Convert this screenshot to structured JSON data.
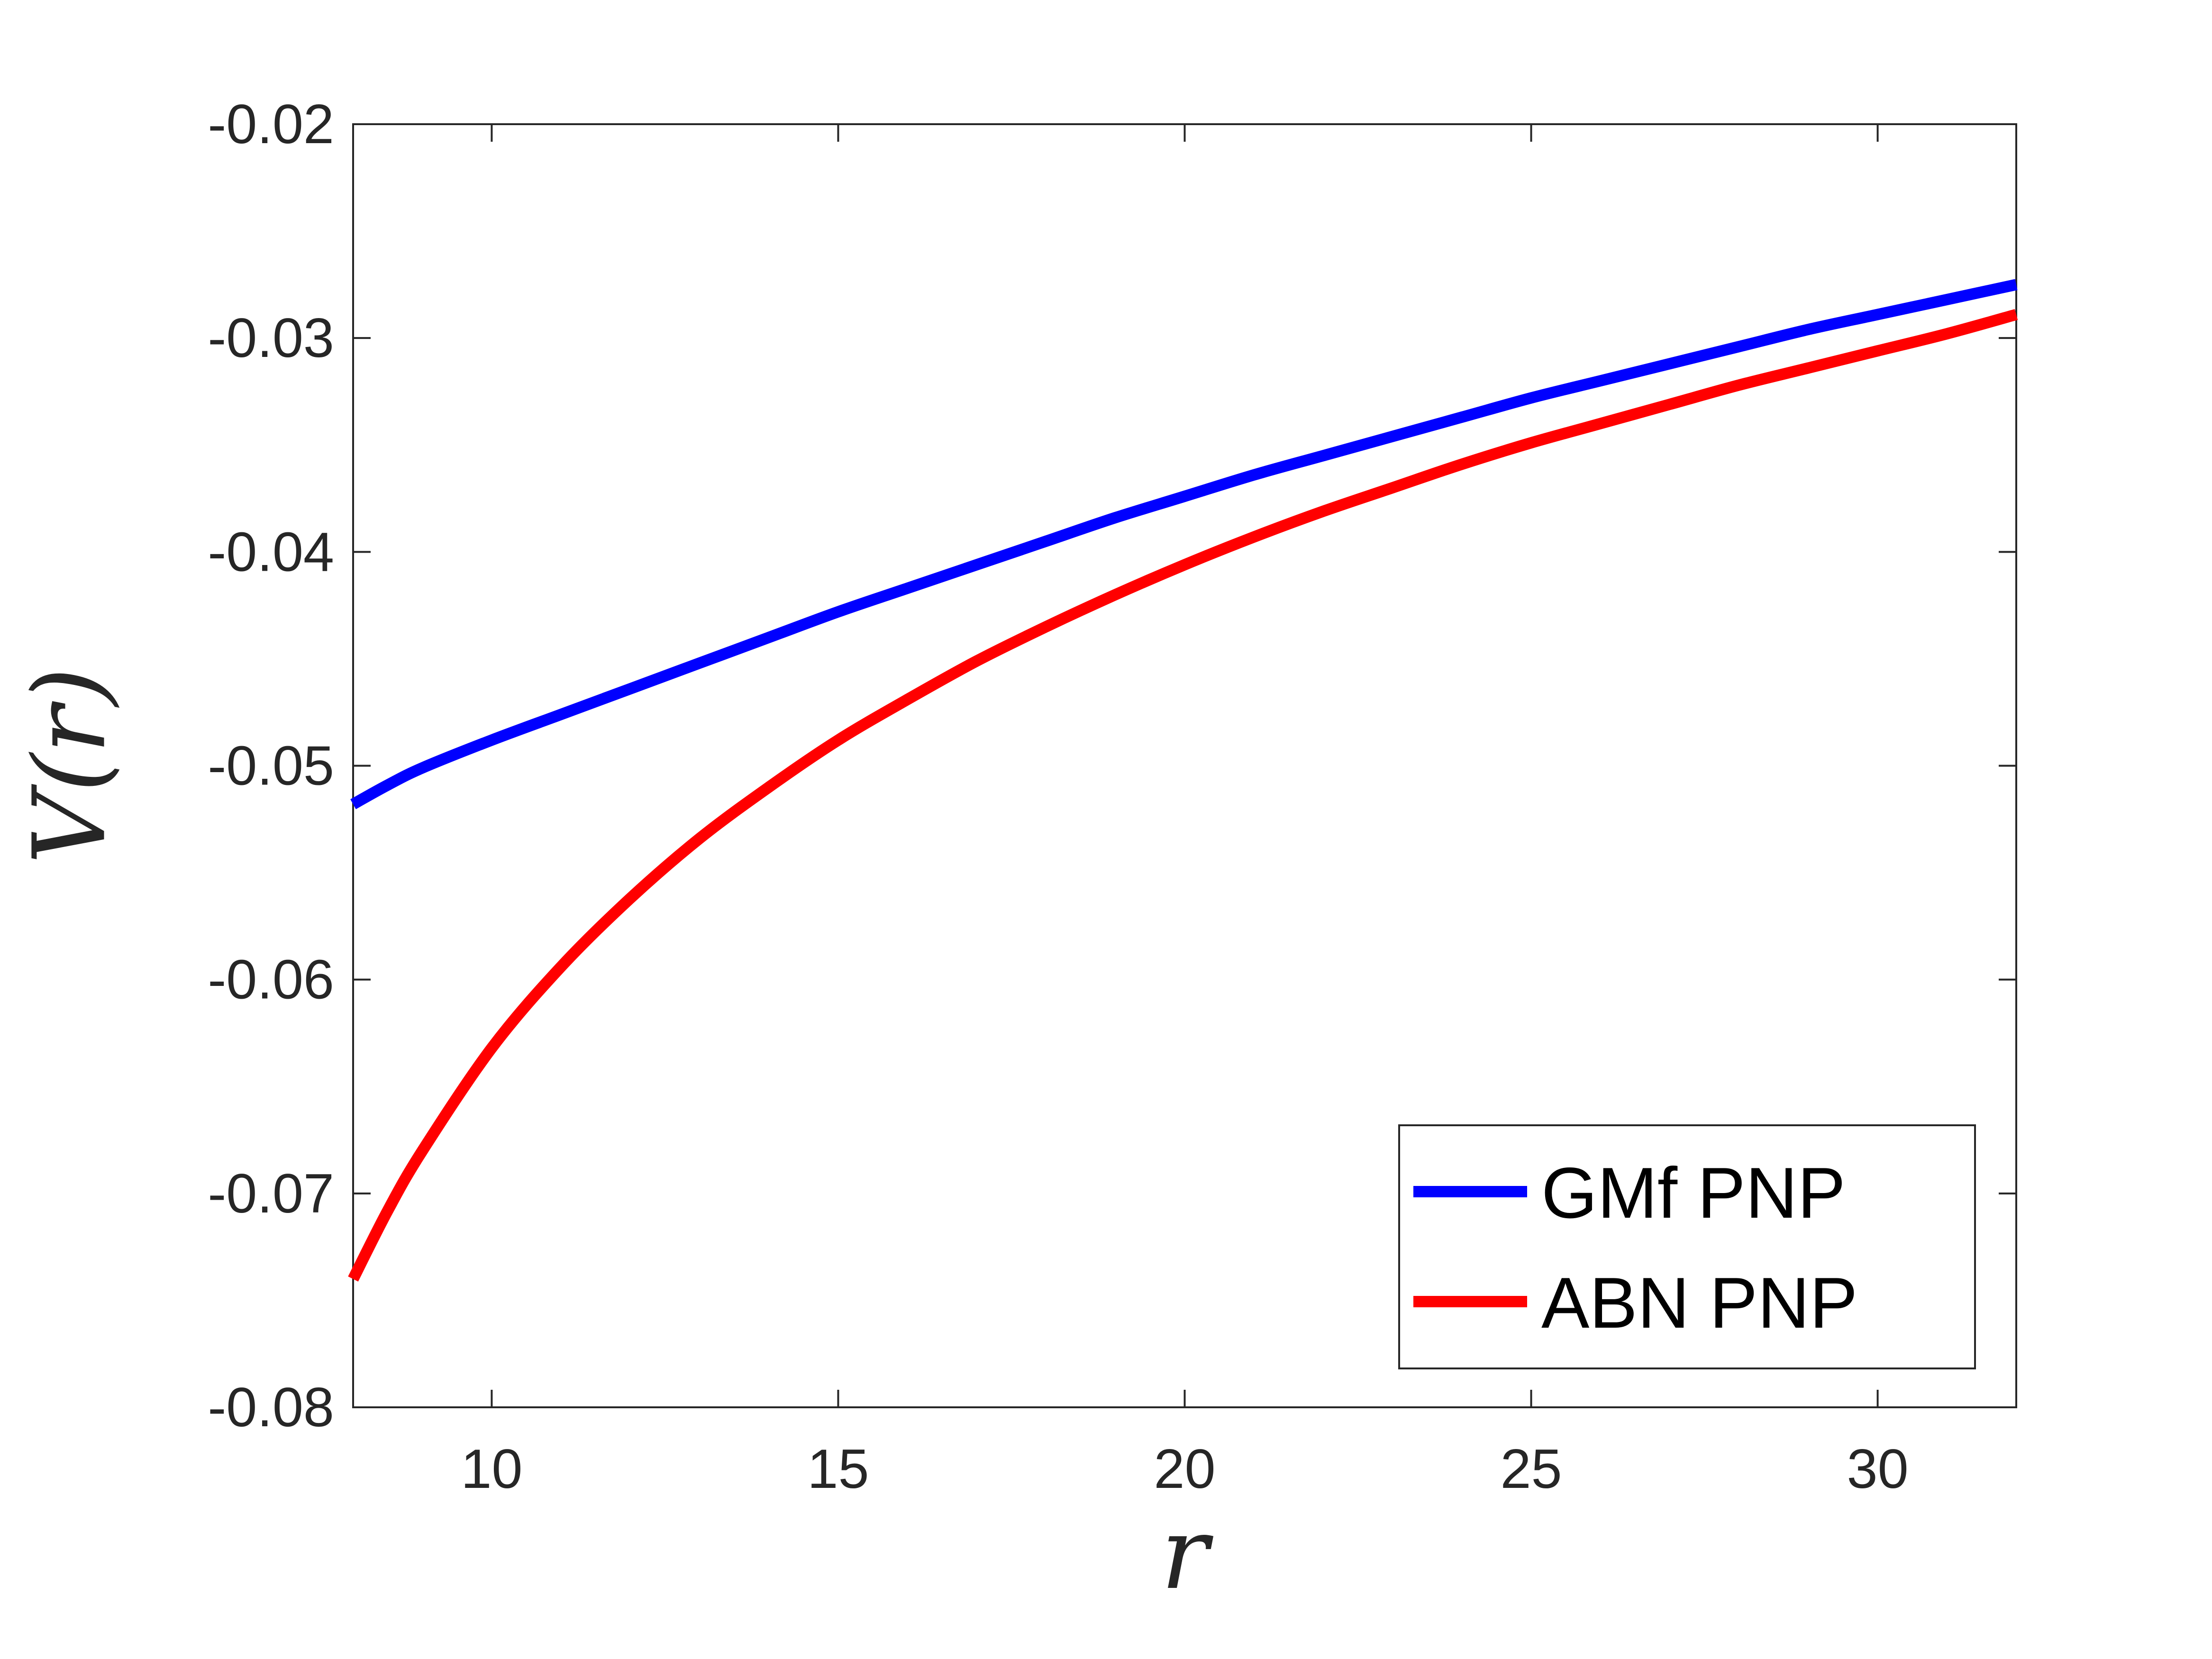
{
  "chart_data": {
    "type": "line",
    "title": "",
    "xlabel": "r",
    "ylabel": "V(r)",
    "xlim": [
      8,
      32
    ],
    "ylim": [
      -0.08,
      -0.02
    ],
    "xticks": [
      10,
      15,
      20,
      25,
      30
    ],
    "xtick_labels": [
      "10",
      "15",
      "20",
      "25",
      "30"
    ],
    "yticks": [
      -0.08,
      -0.07,
      -0.06,
      -0.05,
      -0.04,
      -0.03,
      -0.02
    ],
    "ytick_labels": [
      "-0.08",
      "-0.07",
      "-0.06",
      "-0.05",
      "-0.04",
      "-0.03",
      "-0.02"
    ],
    "grid": false,
    "legend_position": "bottom-right",
    "series": [
      {
        "name": "GMf PNP",
        "color": "#0000ff",
        "x": [
          8,
          8.5,
          9,
          10,
          11,
          12,
          13,
          14,
          15,
          16,
          17,
          18,
          19,
          20,
          21,
          22,
          23,
          24,
          25,
          26,
          27,
          28,
          29,
          30,
          31,
          32
        ],
        "y": [
          -0.0518,
          -0.0509,
          -0.0501,
          -0.0488,
          -0.0476,
          -0.0464,
          -0.0452,
          -0.044,
          -0.0428,
          -0.0417,
          -0.0406,
          -0.0395,
          -0.0384,
          -0.0374,
          -0.0364,
          -0.0355,
          -0.0346,
          -0.0337,
          -0.0328,
          -0.032,
          -0.0312,
          -0.0304,
          -0.0296,
          -0.0289,
          -0.0282,
          -0.0275
        ]
      },
      {
        "name": "ABN PNP",
        "color": "#ff0000",
        "x": [
          8,
          8.5,
          9,
          10,
          11,
          12,
          13,
          14,
          15,
          16,
          17,
          18,
          19,
          20,
          21,
          22,
          23,
          24,
          25,
          26,
          27,
          28,
          29,
          30,
          31,
          32
        ],
        "y": [
          -0.074,
          -0.0708,
          -0.068,
          -0.0632,
          -0.0594,
          -0.0562,
          -0.0534,
          -0.051,
          -0.0488,
          -0.0469,
          -0.0451,
          -0.0435,
          -0.042,
          -0.0406,
          -0.0393,
          -0.0381,
          -0.037,
          -0.0359,
          -0.0349,
          -0.034,
          -0.0331,
          -0.0322,
          -0.0314,
          -0.0306,
          -0.0298,
          -0.0289
        ]
      }
    ]
  }
}
